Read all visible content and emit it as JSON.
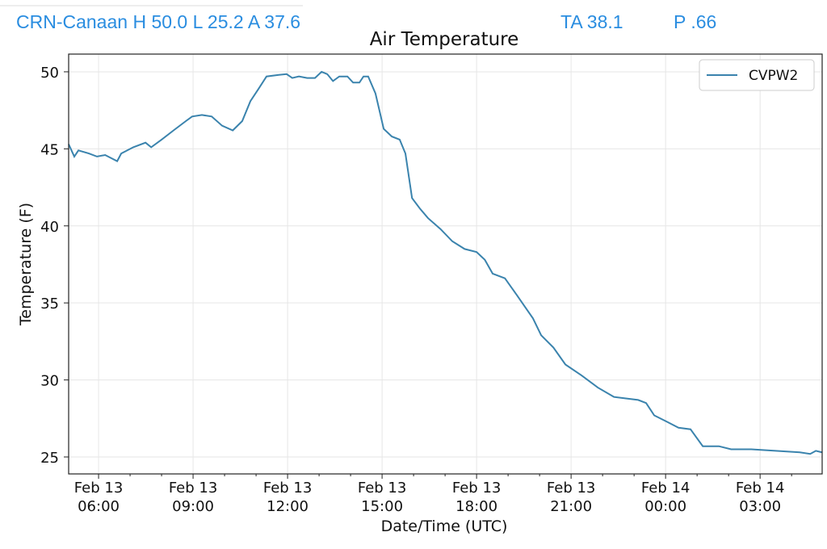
{
  "header": {
    "station": "CRN-Canaan H 50.0 L 25.2 A 37.6",
    "ta": "TA 38.1",
    "p": "P .66"
  },
  "chart_data": {
    "type": "line",
    "title": "Air Temperature",
    "xlabel": "Date/Time (UTC)",
    "ylabel": "Temperature (F)",
    "x_units": "hours since Feb 13 00:00 UTC",
    "xlim": [
      5.05,
      28.97
    ],
    "ylim": [
      23.9,
      51.15
    ],
    "grid": true,
    "legend_position": "top-right",
    "line_color": "#3a83ad",
    "yticks": [
      25,
      30,
      35,
      40,
      45,
      50
    ],
    "xticks": [
      {
        "x": 6,
        "l1": "Feb 13",
        "l2": "06:00"
      },
      {
        "x": 9,
        "l1": "Feb 13",
        "l2": "09:00"
      },
      {
        "x": 12,
        "l1": "Feb 13",
        "l2": "12:00"
      },
      {
        "x": 15,
        "l1": "Feb 13",
        "l2": "15:00"
      },
      {
        "x": 18,
        "l1": "Feb 13",
        "l2": "18:00"
      },
      {
        "x": 21,
        "l1": "Feb 13",
        "l2": "21:00"
      },
      {
        "x": 24,
        "l1": "Feb 14",
        "l2": "00:00"
      },
      {
        "x": 27,
        "l1": "Feb 14",
        "l2": "03:00"
      }
    ],
    "series": [
      {
        "name": "CVPW2",
        "x": [
          5.05,
          5.23,
          5.36,
          5.69,
          5.95,
          6.21,
          6.59,
          6.72,
          7.1,
          7.49,
          7.67,
          8.0,
          8.38,
          8.77,
          8.97,
          9.28,
          9.59,
          9.92,
          10.26,
          10.56,
          10.82,
          11.08,
          11.33,
          11.72,
          11.97,
          12.15,
          12.36,
          12.62,
          12.87,
          13.08,
          13.26,
          13.44,
          13.64,
          13.9,
          14.08,
          14.28,
          14.41,
          14.56,
          14.79,
          15.05,
          15.31,
          15.56,
          15.74,
          15.95,
          16.21,
          16.46,
          16.85,
          17.23,
          17.62,
          18.0,
          18.26,
          18.51,
          18.9,
          19.28,
          19.79,
          20.05,
          20.44,
          20.82,
          21.33,
          21.85,
          22.36,
          22.74,
          23.13,
          23.38,
          23.64,
          24.03,
          24.41,
          24.79,
          25.18,
          25.69,
          26.08,
          26.72,
          27.49,
          28.26,
          28.59,
          28.77,
          28.97
        ],
        "values": [
          45.3,
          44.5,
          44.9,
          44.7,
          44.5,
          44.6,
          44.2,
          44.7,
          45.1,
          45.4,
          45.1,
          45.6,
          46.2,
          46.8,
          47.1,
          47.2,
          47.1,
          46.5,
          46.2,
          46.8,
          48.1,
          48.9,
          49.7,
          49.8,
          49.85,
          49.6,
          49.7,
          49.6,
          49.6,
          50.0,
          49.85,
          49.4,
          49.7,
          49.7,
          49.3,
          49.3,
          49.7,
          49.7,
          48.6,
          46.3,
          45.8,
          45.6,
          44.7,
          41.8,
          41.1,
          40.5,
          39.8,
          39.0,
          38.5,
          38.3,
          37.8,
          36.9,
          36.6,
          35.5,
          34.0,
          32.9,
          32.1,
          31.0,
          30.3,
          29.5,
          28.9,
          28.8,
          28.7,
          28.5,
          27.7,
          27.3,
          26.9,
          26.8,
          25.7,
          25.7,
          25.5,
          25.5,
          25.4,
          25.3,
          25.2,
          25.4,
          25.3
        ]
      }
    ]
  }
}
